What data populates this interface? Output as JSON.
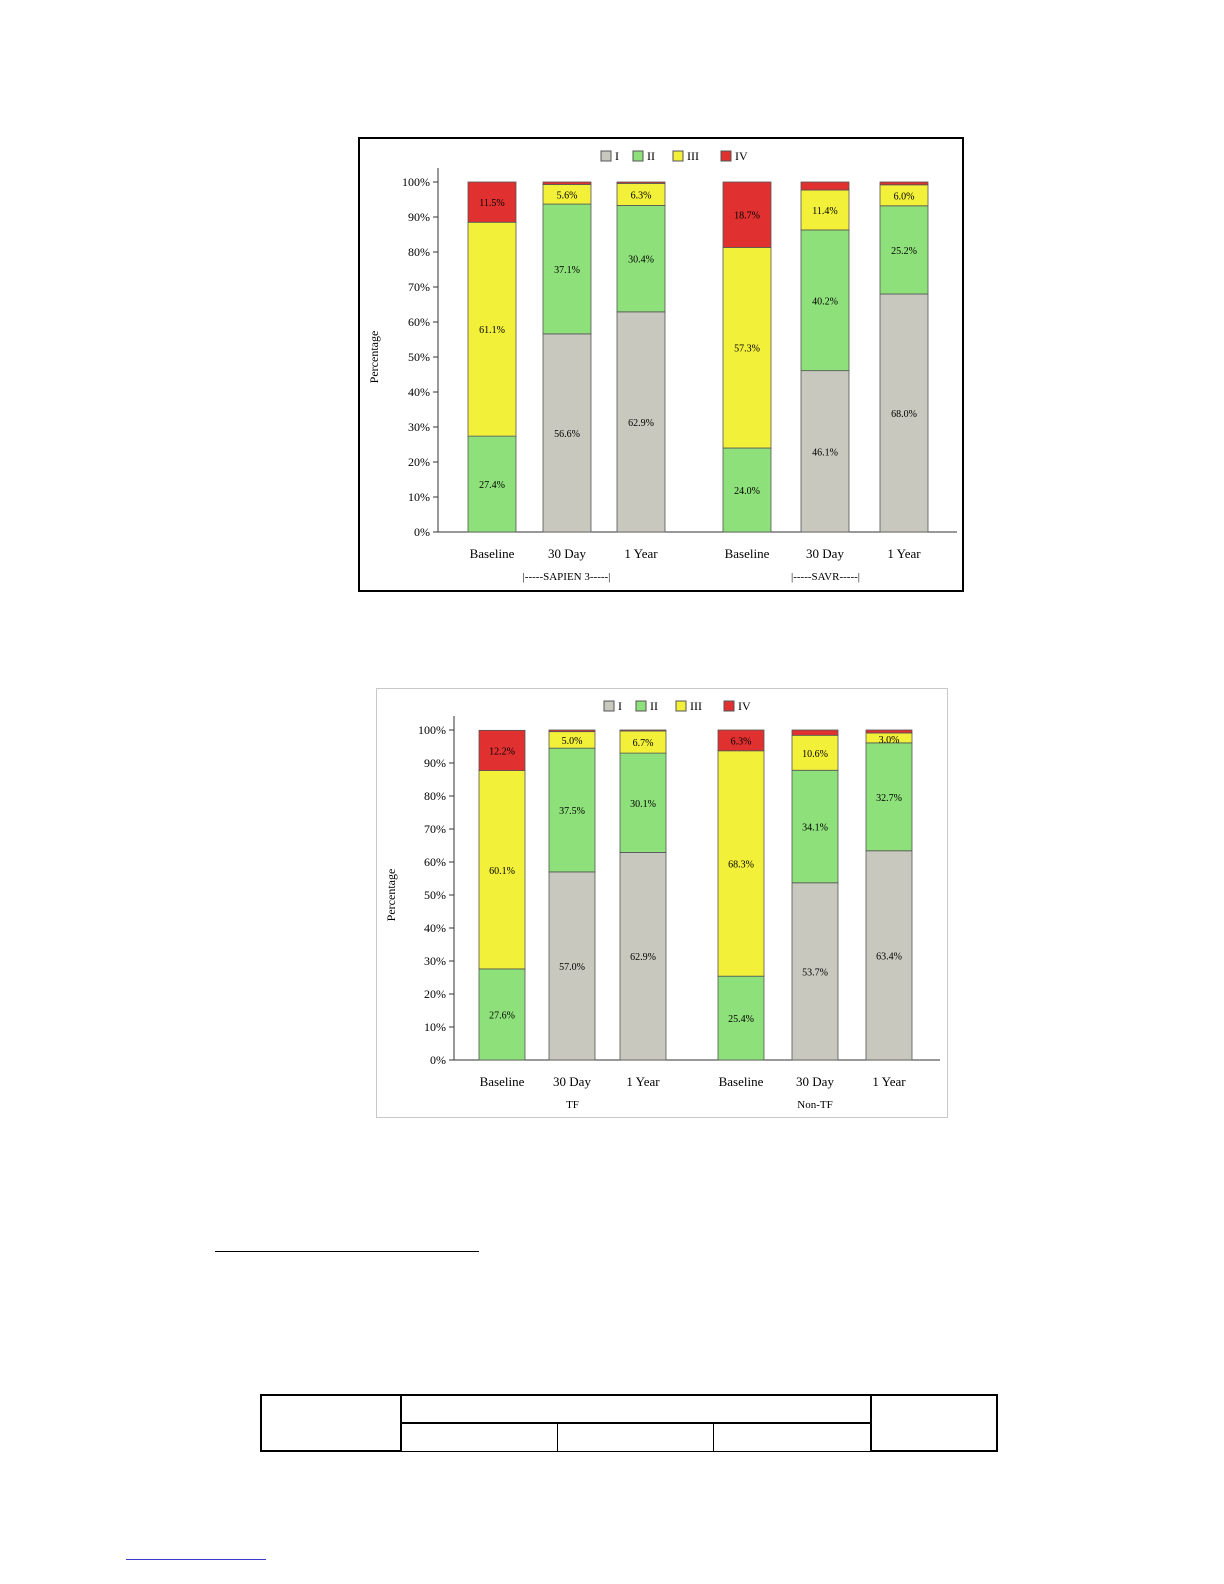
{
  "legend": {
    "items": [
      {
        "label": "I",
        "color": "#c8c8be"
      },
      {
        "label": "II",
        "color": "#8ee07a"
      },
      {
        "label": "III",
        "color": "#f3f03a"
      },
      {
        "label": "IV",
        "color": "#e03030"
      }
    ]
  },
  "chart_data": [
    {
      "type": "bar",
      "stacked": true,
      "ylabel": "Percentage",
      "ylim": [
        0,
        100
      ],
      "yticks": [
        "0%",
        "10%",
        "20%",
        "30%",
        "40%",
        "50%",
        "60%",
        "70%",
        "80%",
        "90%",
        "100%"
      ],
      "legend_position": "top-center",
      "groups": [
        {
          "label": "|-----SAPIEN 3-----|",
          "categories": [
            "Baseline",
            "30 Day",
            "1 Year"
          ]
        },
        {
          "label": "|-----SAVR-----|",
          "categories": [
            "Baseline",
            "30 Day",
            "1 Year"
          ]
        }
      ],
      "series": [
        {
          "name": "I",
          "values": [
            0,
            56.6,
            62.9,
            0,
            46.1,
            68.0
          ],
          "labels": [
            "",
            "56.6%",
            "62.9%",
            "",
            "46.1%",
            "68.0%"
          ]
        },
        {
          "name": "II",
          "values": [
            27.4,
            37.1,
            30.4,
            24.0,
            40.2,
            25.2
          ],
          "labels": [
            "27.4%",
            "37.1%",
            "30.4%",
            "24.0%",
            "40.2%",
            "25.2%"
          ]
        },
        {
          "name": "III",
          "values": [
            61.1,
            5.6,
            6.3,
            57.3,
            11.4,
            6.0
          ],
          "labels": [
            "61.1%",
            "5.6%",
            "6.3%",
            "57.3%",
            "11.4%",
            "6.0%"
          ]
        },
        {
          "name": "IV",
          "values": [
            11.5,
            0.7,
            0.4,
            18.7,
            2.3,
            0.8
          ],
          "labels": [
            "11.5%",
            "",
            "",
            "18.7%",
            "",
            ""
          ]
        }
      ]
    },
    {
      "type": "bar",
      "stacked": true,
      "ylabel": "Percentage",
      "ylim": [
        0,
        100
      ],
      "yticks": [
        "0%",
        "10%",
        "20%",
        "30%",
        "40%",
        "50%",
        "60%",
        "70%",
        "80%",
        "90%",
        "100%"
      ],
      "legend_position": "top-center",
      "groups": [
        {
          "label": "TF",
          "categories": [
            "Baseline",
            "30 Day",
            "1 Year"
          ]
        },
        {
          "label": "Non-TF",
          "categories": [
            "Baseline",
            "30 Day",
            "1 Year"
          ]
        }
      ],
      "series": [
        {
          "name": "I",
          "values": [
            0,
            57.0,
            62.9,
            0,
            53.7,
            63.4
          ],
          "labels": [
            "",
            "57.0%",
            "62.9%",
            "",
            "53.7%",
            "63.4%"
          ]
        },
        {
          "name": "II",
          "values": [
            27.6,
            37.5,
            30.1,
            25.4,
            34.1,
            32.7
          ],
          "labels": [
            "27.6%",
            "37.5%",
            "30.1%",
            "25.4%",
            "34.1%",
            "32.7%"
          ]
        },
        {
          "name": "III",
          "values": [
            60.1,
            5.0,
            6.7,
            68.3,
            10.6,
            3.0
          ],
          "labels": [
            "60.1%",
            "5.0%",
            "6.7%",
            "68.3%",
            "10.6%",
            "3.0%"
          ]
        },
        {
          "name": "IV",
          "values": [
            12.2,
            0.5,
            0.3,
            6.3,
            1.6,
            0.9
          ],
          "labels": [
            "12.2%",
            "",
            "",
            "6.3%",
            "",
            ""
          ]
        }
      ]
    }
  ]
}
